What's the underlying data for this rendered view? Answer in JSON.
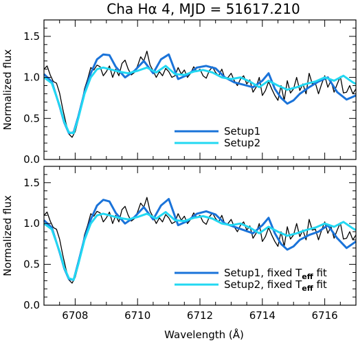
{
  "title": "Cha Hα 4, MJD = 51617.210",
  "colors": {
    "obs": "#000000",
    "setup1": "#1a73d9",
    "setup2": "#22d8f2"
  },
  "chart_data": [
    {
      "type": "line",
      "panel": "top",
      "xlabel": "",
      "ylabel": "Normalized flux",
      "xlim": [
        6707.0,
        6717.0
      ],
      "ylim": [
        0.0,
        1.7
      ],
      "xticks": [
        6708,
        6710,
        6712,
        6714,
        6716
      ],
      "yticks": [
        0.0,
        0.5,
        1.0,
        1.5
      ],
      "legend_position": "bottom-center",
      "series": [
        {
          "role": "observed",
          "color": "#000000",
          "x": [
            6707.0,
            6707.1,
            6707.2,
            6707.3,
            6707.4,
            6707.5,
            6707.6,
            6707.7,
            6707.8,
            6707.9,
            6708.0,
            6708.1,
            6708.2,
            6708.3,
            6708.4,
            6708.5,
            6708.6,
            6708.7,
            6708.8,
            6708.9,
            6709.0,
            6709.1,
            6709.2,
            6709.3,
            6709.4,
            6709.5,
            6709.6,
            6709.7,
            6709.8,
            6709.9,
            6710.0,
            6710.1,
            6710.2,
            6710.3,
            6710.4,
            6710.5,
            6710.6,
            6710.7,
            6710.8,
            6710.9,
            6711.0,
            6711.1,
            6711.2,
            6711.3,
            6711.4,
            6711.5,
            6711.6,
            6711.7,
            6711.8,
            6711.9,
            6712.0,
            6712.1,
            6712.2,
            6712.3,
            6712.4,
            6712.5,
            6712.6,
            6712.7,
            6712.8,
            6712.9,
            6713.0,
            6713.1,
            6713.2,
            6713.3,
            6713.4,
            6713.5,
            6713.6,
            6713.7,
            6713.8,
            6713.9,
            6714.0,
            6714.1,
            6714.2,
            6714.3,
            6714.4,
            6714.5,
            6714.6,
            6714.7,
            6714.8,
            6714.9,
            6715.0,
            6715.1,
            6715.2,
            6715.3,
            6715.4,
            6715.5,
            6715.6,
            6715.7,
            6715.8,
            6715.9,
            6716.0,
            6716.1,
            6716.2,
            6716.3,
            6716.4,
            6716.5,
            6716.6,
            6716.7,
            6716.8,
            6716.9,
            6717.0
          ],
          "y": [
            1.1,
            1.14,
            1.03,
            0.95,
            0.93,
            0.81,
            0.62,
            0.45,
            0.31,
            0.27,
            0.34,
            0.48,
            0.67,
            0.86,
            0.98,
            1.12,
            1.09,
            1.15,
            1.13,
            1.02,
            1.07,
            1.14,
            1.0,
            1.1,
            1.02,
            1.17,
            1.21,
            1.1,
            1.03,
            1.06,
            1.14,
            1.25,
            1.2,
            1.32,
            1.15,
            1.08,
            1.0,
            1.07,
            1.02,
            1.11,
            1.07,
            1.0,
            1.02,
            1.12,
            1.04,
            1.09,
            1.0,
            1.05,
            1.13,
            1.07,
            1.1,
            1.02,
            0.99,
            1.08,
            1.13,
            1.06,
            1.02,
            1.1,
            0.99,
            1.0,
            1.05,
            0.96,
            0.9,
            0.98,
            1.02,
            0.92,
            0.97,
            0.82,
            0.88,
            1.0,
            0.78,
            0.84,
            0.95,
            0.86,
            0.78,
            0.72,
            0.9,
            0.72,
            0.96,
            0.81,
            0.86,
            1.0,
            0.84,
            0.92,
            0.8,
            1.05,
            0.92,
            0.93,
            0.8,
            0.92,
            1.02,
            0.88,
            0.96,
            0.82,
            0.92,
            1.01,
            0.81,
            0.82,
            0.9,
            0.8,
            0.86
          ]
        },
        {
          "name": "Setup1",
          "color": "#1a73d9",
          "x": [
            6707.0,
            6707.25,
            6707.5,
            6707.65,
            6707.8,
            6707.95,
            6708.1,
            6708.3,
            6708.5,
            6708.7,
            6708.9,
            6709.1,
            6709.3,
            6709.6,
            6709.9,
            6710.2,
            6710.5,
            6710.75,
            6711.0,
            6711.3,
            6711.6,
            6711.9,
            6712.2,
            6712.5,
            6712.8,
            6713.1,
            6713.4,
            6713.7,
            6714.0,
            6714.2,
            6714.4,
            6714.6,
            6714.8,
            6715.0,
            6715.2,
            6715.5,
            6715.8,
            6716.1,
            6716.4,
            6716.7,
            6717.0
          ],
          "y": [
            1.04,
            0.95,
            0.65,
            0.45,
            0.32,
            0.33,
            0.52,
            0.82,
            1.05,
            1.22,
            1.28,
            1.27,
            1.13,
            1.0,
            1.08,
            1.2,
            1.05,
            1.22,
            1.28,
            0.98,
            1.03,
            1.12,
            1.14,
            1.11,
            1.0,
            0.94,
            0.91,
            0.88,
            0.96,
            1.05,
            0.86,
            0.75,
            0.68,
            0.72,
            0.8,
            0.88,
            0.95,
            1.0,
            0.82,
            0.73,
            0.78
          ]
        },
        {
          "name": "Setup2",
          "color": "#22d8f2",
          "x": [
            6707.0,
            6707.25,
            6707.5,
            6707.65,
            6707.8,
            6707.95,
            6708.1,
            6708.3,
            6708.5,
            6708.7,
            6708.9,
            6709.1,
            6709.4,
            6709.7,
            6710.0,
            6710.3,
            6710.6,
            6710.9,
            6711.2,
            6711.5,
            6711.8,
            6712.1,
            6712.4,
            6712.7,
            6713.0,
            6713.3,
            6713.6,
            6713.9,
            6714.2,
            6714.5,
            6714.8,
            6715.1,
            6715.4,
            6715.7,
            6716.0,
            6716.3,
            6716.6,
            6716.9,
            6717.0
          ],
          "y": [
            1.0,
            0.93,
            0.66,
            0.46,
            0.33,
            0.32,
            0.5,
            0.8,
            1.0,
            1.1,
            1.12,
            1.1,
            1.07,
            1.05,
            1.08,
            1.12,
            1.06,
            1.14,
            1.04,
            1.03,
            1.07,
            1.09,
            1.06,
            1.0,
            0.98,
            1.0,
            0.95,
            0.88,
            0.96,
            0.9,
            0.85,
            0.88,
            0.92,
            0.95,
            1.0,
            0.96,
            1.02,
            0.94,
            0.92
          ]
        }
      ]
    },
    {
      "type": "line",
      "panel": "bottom",
      "xlabel": "Wavelength (Å)",
      "ylabel": "Normalized flux",
      "xlim": [
        6707.0,
        6717.0
      ],
      "ylim": [
        0.0,
        1.7
      ],
      "xticks": [
        6708,
        6710,
        6712,
        6714,
        6716
      ],
      "yticks": [
        0.0,
        0.5,
        1.0,
        1.5
      ],
      "legend_position": "bottom-right",
      "series": [
        {
          "role": "observed",
          "color": "#000000",
          "x": [
            6707.0,
            6707.1,
            6707.2,
            6707.3,
            6707.4,
            6707.5,
            6707.6,
            6707.7,
            6707.8,
            6707.9,
            6708.0,
            6708.1,
            6708.2,
            6708.3,
            6708.4,
            6708.5,
            6708.6,
            6708.7,
            6708.8,
            6708.9,
            6709.0,
            6709.1,
            6709.2,
            6709.3,
            6709.4,
            6709.5,
            6709.6,
            6709.7,
            6709.8,
            6709.9,
            6710.0,
            6710.1,
            6710.2,
            6710.3,
            6710.4,
            6710.5,
            6710.6,
            6710.7,
            6710.8,
            6710.9,
            6711.0,
            6711.1,
            6711.2,
            6711.3,
            6711.4,
            6711.5,
            6711.6,
            6711.7,
            6711.8,
            6711.9,
            6712.0,
            6712.1,
            6712.2,
            6712.3,
            6712.4,
            6712.5,
            6712.6,
            6712.7,
            6712.8,
            6712.9,
            6713.0,
            6713.1,
            6713.2,
            6713.3,
            6713.4,
            6713.5,
            6713.6,
            6713.7,
            6713.8,
            6713.9,
            6714.0,
            6714.1,
            6714.2,
            6714.3,
            6714.4,
            6714.5,
            6714.6,
            6714.7,
            6714.8,
            6714.9,
            6715.0,
            6715.1,
            6715.2,
            6715.3,
            6715.4,
            6715.5,
            6715.6,
            6715.7,
            6715.8,
            6715.9,
            6716.0,
            6716.1,
            6716.2,
            6716.3,
            6716.4,
            6716.5,
            6716.6,
            6716.7,
            6716.8,
            6716.9,
            6717.0
          ],
          "y": [
            1.1,
            1.14,
            1.03,
            0.95,
            0.93,
            0.81,
            0.62,
            0.45,
            0.31,
            0.27,
            0.34,
            0.48,
            0.67,
            0.86,
            0.98,
            1.12,
            1.09,
            1.15,
            1.13,
            1.02,
            1.07,
            1.14,
            1.0,
            1.1,
            1.02,
            1.17,
            1.21,
            1.1,
            1.03,
            1.06,
            1.14,
            1.25,
            1.2,
            1.32,
            1.15,
            1.08,
            1.0,
            1.07,
            1.02,
            1.11,
            1.07,
            1.0,
            1.02,
            1.12,
            1.04,
            1.09,
            1.0,
            1.05,
            1.13,
            1.07,
            1.1,
            1.02,
            0.99,
            1.08,
            1.13,
            1.06,
            1.02,
            1.1,
            0.99,
            1.0,
            1.05,
            0.96,
            0.9,
            0.98,
            1.02,
            0.92,
            0.97,
            0.82,
            0.88,
            1.0,
            0.78,
            0.84,
            0.95,
            0.86,
            0.78,
            0.72,
            0.9,
            0.72,
            0.96,
            0.81,
            0.86,
            1.0,
            0.84,
            0.92,
            0.8,
            1.05,
            0.92,
            0.93,
            0.8,
            0.92,
            1.02,
            0.88,
            0.96,
            0.82,
            0.92,
            1.01,
            0.81,
            0.82,
            0.9,
            0.8,
            0.86
          ]
        },
        {
          "name": "Setup1, fixed T_eff fit",
          "color": "#1a73d9",
          "x": [
            6707.0,
            6707.25,
            6707.5,
            6707.65,
            6707.8,
            6707.95,
            6708.1,
            6708.3,
            6708.5,
            6708.7,
            6708.9,
            6709.1,
            6709.3,
            6709.6,
            6709.9,
            6710.2,
            6710.5,
            6710.75,
            6711.0,
            6711.3,
            6711.6,
            6711.9,
            6712.2,
            6712.5,
            6712.8,
            6713.1,
            6713.4,
            6713.7,
            6714.0,
            6714.2,
            6714.4,
            6714.6,
            6714.8,
            6715.0,
            6715.2,
            6715.5,
            6715.8,
            6716.1,
            6716.4,
            6716.7,
            6717.0
          ],
          "y": [
            1.04,
            0.95,
            0.65,
            0.45,
            0.32,
            0.31,
            0.52,
            0.82,
            1.05,
            1.22,
            1.29,
            1.27,
            1.13,
            1.0,
            1.08,
            1.2,
            1.05,
            1.22,
            1.3,
            0.98,
            1.03,
            1.12,
            1.15,
            1.11,
            1.0,
            0.96,
            0.92,
            0.88,
            0.98,
            1.07,
            0.88,
            0.75,
            0.68,
            0.72,
            0.8,
            0.86,
            0.9,
            0.98,
            0.82,
            0.7,
            0.78
          ]
        },
        {
          "name": "Setup2, fixed T_eff fit",
          "color": "#22d8f2",
          "x": [
            6707.0,
            6707.25,
            6707.5,
            6707.65,
            6707.8,
            6707.95,
            6708.1,
            6708.3,
            6708.5,
            6708.7,
            6708.9,
            6709.1,
            6709.4,
            6709.7,
            6710.0,
            6710.3,
            6710.6,
            6710.9,
            6711.2,
            6711.5,
            6711.8,
            6712.1,
            6712.4,
            6712.7,
            6713.0,
            6713.3,
            6713.6,
            6713.9,
            6714.2,
            6714.5,
            6714.8,
            6715.1,
            6715.4,
            6715.7,
            6716.0,
            6716.3,
            6716.6,
            6716.9,
            6717.0
          ],
          "y": [
            1.0,
            0.93,
            0.66,
            0.46,
            0.33,
            0.31,
            0.5,
            0.8,
            1.0,
            1.1,
            1.12,
            1.1,
            1.07,
            1.05,
            1.08,
            1.12,
            1.06,
            1.14,
            1.04,
            1.03,
            1.07,
            1.09,
            1.06,
            1.0,
            0.98,
            1.0,
            0.95,
            0.88,
            0.96,
            0.9,
            0.85,
            0.88,
            0.92,
            0.95,
            1.0,
            0.96,
            1.02,
            0.94,
            0.92
          ]
        }
      ]
    }
  ]
}
